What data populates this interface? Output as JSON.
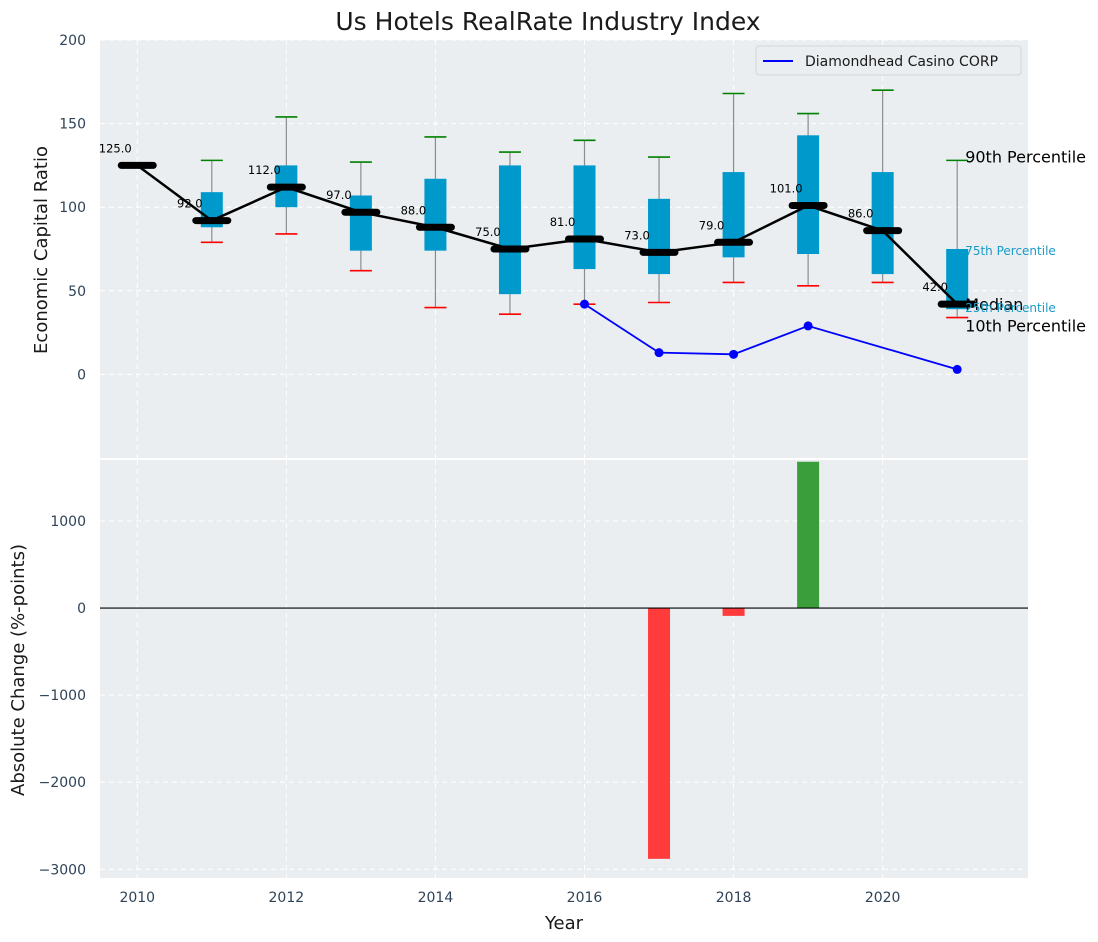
{
  "chart_data": [
    {
      "type": "box",
      "title": "Us Hotels RealRate Industry Index",
      "ylabel": "Economic Capital Ratio",
      "xlabel": "",
      "ylim": [
        -50,
        200
      ],
      "yticks": [
        0,
        50,
        100,
        150,
        200
      ],
      "xlim": [
        2009.5,
        2021.95
      ],
      "xticks": [
        2010,
        2012,
        2014,
        2016,
        2018,
        2020
      ],
      "years": [
        2010,
        2011,
        2012,
        2013,
        2014,
        2015,
        2016,
        2017,
        2018,
        2019,
        2020,
        2021
      ],
      "p10": [
        125,
        79,
        84,
        62,
        40,
        36,
        42,
        43,
        55,
        53,
        55,
        34
      ],
      "p25": [
        125,
        88,
        100,
        74,
        74,
        48,
        63,
        60,
        70,
        72,
        60,
        39
      ],
      "median": [
        125,
        92,
        112,
        97,
        88,
        75,
        81,
        73,
        79,
        101,
        86,
        42
      ],
      "p75": [
        125,
        109,
        125,
        107,
        117,
        125,
        125,
        105,
        121,
        143,
        121,
        75
      ],
      "p90": [
        125,
        128,
        154,
        127,
        142,
        133,
        140,
        130,
        168,
        156,
        170,
        128
      ],
      "median_labels": [
        "125.0",
        "92.0",
        "112.0",
        "97.0",
        "88.0",
        "75.0",
        "81.0",
        "73.0",
        "79.0",
        "101.0",
        "86.0",
        "42.0"
      ],
      "company": {
        "name": "Diamondhead Casino CORP",
        "years": [
          2016,
          2017,
          2018,
          2019,
          2021
        ],
        "values": [
          42,
          13,
          12,
          29,
          3
        ]
      },
      "percentile_labels": {
        "p90": "90th Percentile",
        "p75": "75th Percentile",
        "median": "Median",
        "p25": "25th Percentile",
        "p10": "10th Percentile"
      },
      "legend_position": "top-right",
      "grid": true
    },
    {
      "type": "bar",
      "title": "",
      "xlabel": "Year",
      "ylabel": "Absolute Change (%-points)",
      "ylim": [
        -3100,
        1700
      ],
      "yticks": [
        -3000,
        -2000,
        -1000,
        0,
        1000
      ],
      "ytick_labels": [
        "−3000",
        "−2000",
        "−1000",
        "0",
        "1000"
      ],
      "xticks": [
        2010,
        2012,
        2014,
        2016,
        2018,
        2020
      ],
      "years": [
        2017,
        2018,
        2019
      ],
      "values": [
        -2880,
        -90,
        1680
      ],
      "grid": true
    }
  ],
  "colors": {
    "box": "#0099cc",
    "company": "#0000ff",
    "median_line": "#000000",
    "p90_cap": "#008000",
    "p10_cap": "#ff0000",
    "positive_bar": "#3a9e3a",
    "negative_bar": "#ff3b3b",
    "panel_bg": "#eaeef0"
  }
}
